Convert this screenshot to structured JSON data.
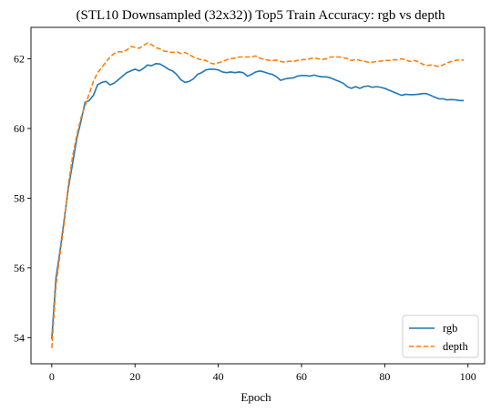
{
  "chart_data": {
    "type": "line",
    "title": "(STL10 Downsampled (32x32)) Top5 Train Accuracy: rgb vs depth",
    "xlabel": "Epoch",
    "ylabel": "",
    "xlim": [
      -5,
      104
    ],
    "ylim": [
      53.25,
      62.9
    ],
    "xticks": [
      0,
      20,
      40,
      60,
      80,
      100
    ],
    "yticks": [
      54,
      56,
      58,
      60,
      62
    ],
    "grid": false,
    "legend_position": "lower-right",
    "series": [
      {
        "name": "rgb",
        "color": "#1f77b4",
        "style": "solid",
        "values": [
          [
            0,
            53.95
          ],
          [
            1,
            55.7
          ],
          [
            2,
            56.5
          ],
          [
            3,
            57.4
          ],
          [
            4,
            58.3
          ],
          [
            5,
            59.0
          ],
          [
            6,
            59.7
          ],
          [
            7,
            60.2
          ],
          [
            8,
            60.75
          ],
          [
            9,
            60.8
          ],
          [
            10,
            60.95
          ],
          [
            11,
            61.25
          ],
          [
            12,
            61.32
          ],
          [
            13,
            61.35
          ],
          [
            14,
            61.25
          ],
          [
            15,
            61.3
          ],
          [
            16,
            61.4
          ],
          [
            17,
            61.5
          ],
          [
            18,
            61.6
          ],
          [
            19,
            61.65
          ],
          [
            20,
            61.7
          ],
          [
            21,
            61.65
          ],
          [
            22,
            61.72
          ],
          [
            23,
            61.82
          ],
          [
            24,
            61.8
          ],
          [
            25,
            61.86
          ],
          [
            26,
            61.85
          ],
          [
            27,
            61.78
          ],
          [
            28,
            61.7
          ],
          [
            29,
            61.65
          ],
          [
            30,
            61.55
          ],
          [
            31,
            61.4
          ],
          [
            32,
            61.32
          ],
          [
            33,
            61.35
          ],
          [
            34,
            61.42
          ],
          [
            35,
            61.55
          ],
          [
            36,
            61.6
          ],
          [
            37,
            61.68
          ],
          [
            38,
            61.7
          ],
          [
            39,
            61.7
          ],
          [
            40,
            61.68
          ],
          [
            41,
            61.62
          ],
          [
            42,
            61.6
          ],
          [
            43,
            61.62
          ],
          [
            44,
            61.6
          ],
          [
            45,
            61.62
          ],
          [
            46,
            61.6
          ],
          [
            47,
            61.5
          ],
          [
            48,
            61.55
          ],
          [
            49,
            61.62
          ],
          [
            50,
            61.65
          ],
          [
            51,
            61.62
          ],
          [
            52,
            61.58
          ],
          [
            53,
            61.55
          ],
          [
            54,
            61.48
          ],
          [
            55,
            61.38
          ],
          [
            56,
            61.42
          ],
          [
            57,
            61.44
          ],
          [
            58,
            61.45
          ],
          [
            59,
            61.5
          ],
          [
            60,
            61.52
          ],
          [
            61,
            61.52
          ],
          [
            62,
            61.5
          ],
          [
            63,
            61.53
          ],
          [
            64,
            61.5
          ],
          [
            65,
            61.48
          ],
          [
            66,
            61.48
          ],
          [
            67,
            61.45
          ],
          [
            68,
            61.4
          ],
          [
            69,
            61.35
          ],
          [
            70,
            61.3
          ],
          [
            71,
            61.2
          ],
          [
            72,
            61.15
          ],
          [
            73,
            61.2
          ],
          [
            74,
            61.15
          ],
          [
            75,
            61.2
          ],
          [
            76,
            61.22
          ],
          [
            77,
            61.18
          ],
          [
            78,
            61.2
          ],
          [
            79,
            61.18
          ],
          [
            80,
            61.15
          ],
          [
            81,
            61.1
          ],
          [
            82,
            61.05
          ],
          [
            83,
            61.0
          ],
          [
            84,
            60.95
          ],
          [
            85,
            60.98
          ],
          [
            86,
            60.97
          ],
          [
            87,
            60.97
          ],
          [
            88,
            60.98
          ],
          [
            89,
            61.0
          ],
          [
            90,
            61.0
          ],
          [
            91,
            60.95
          ],
          [
            92,
            60.9
          ],
          [
            93,
            60.85
          ],
          [
            94,
            60.85
          ],
          [
            95,
            60.82
          ],
          [
            96,
            60.83
          ],
          [
            97,
            60.82
          ],
          [
            98,
            60.8
          ],
          [
            99,
            60.8
          ]
        ]
      },
      {
        "name": "depth",
        "color": "#ff7f0e",
        "style": "dashed",
        "values": [
          [
            0,
            53.7
          ],
          [
            1,
            55.5
          ],
          [
            2,
            56.4
          ],
          [
            3,
            57.3
          ],
          [
            4,
            58.4
          ],
          [
            5,
            59.2
          ],
          [
            6,
            59.8
          ],
          [
            7,
            60.3
          ],
          [
            8,
            60.65
          ],
          [
            9,
            61.0
          ],
          [
            10,
            61.35
          ],
          [
            11,
            61.6
          ],
          [
            12,
            61.75
          ],
          [
            13,
            61.9
          ],
          [
            14,
            62.05
          ],
          [
            15,
            62.15
          ],
          [
            16,
            62.2
          ],
          [
            17,
            62.2
          ],
          [
            18,
            62.25
          ],
          [
            19,
            62.35
          ],
          [
            20,
            62.33
          ],
          [
            21,
            62.3
          ],
          [
            22,
            62.38
          ],
          [
            23,
            62.45
          ],
          [
            24,
            62.4
          ],
          [
            25,
            62.32
          ],
          [
            26,
            62.28
          ],
          [
            27,
            62.22
          ],
          [
            28,
            62.2
          ],
          [
            29,
            62.18
          ],
          [
            30,
            62.2
          ],
          [
            31,
            62.15
          ],
          [
            32,
            62.18
          ],
          [
            33,
            62.12
          ],
          [
            34,
            62.05
          ],
          [
            35,
            62.0
          ],
          [
            36,
            61.97
          ],
          [
            37,
            61.95
          ],
          [
            38,
            61.88
          ],
          [
            39,
            61.85
          ],
          [
            40,
            61.88
          ],
          [
            41,
            61.92
          ],
          [
            42,
            61.97
          ],
          [
            43,
            62.0
          ],
          [
            44,
            62.02
          ],
          [
            45,
            62.05
          ],
          [
            46,
            62.05
          ],
          [
            47,
            62.05
          ],
          [
            48,
            62.05
          ],
          [
            49,
            62.08
          ],
          [
            50,
            62.02
          ],
          [
            51,
            61.98
          ],
          [
            52,
            61.96
          ],
          [
            53,
            61.95
          ],
          [
            54,
            61.96
          ],
          [
            55,
            61.92
          ],
          [
            56,
            61.9
          ],
          [
            57,
            61.93
          ],
          [
            58,
            61.92
          ],
          [
            59,
            61.95
          ],
          [
            60,
            61.97
          ],
          [
            61,
            61.98
          ],
          [
            62,
            62.0
          ],
          [
            63,
            62.02
          ],
          [
            64,
            62.0
          ],
          [
            65,
            61.98
          ],
          [
            66,
            62.0
          ],
          [
            67,
            62.05
          ],
          [
            68,
            62.05
          ],
          [
            69,
            62.05
          ],
          [
            70,
            62.03
          ],
          [
            71,
            62.0
          ],
          [
            72,
            61.95
          ],
          [
            73,
            61.98
          ],
          [
            74,
            61.95
          ],
          [
            75,
            61.93
          ],
          [
            76,
            61.9
          ],
          [
            77,
            61.9
          ],
          [
            78,
            61.92
          ],
          [
            79,
            61.93
          ],
          [
            80,
            61.95
          ],
          [
            81,
            61.95
          ],
          [
            82,
            61.97
          ],
          [
            83,
            61.97
          ],
          [
            84,
            62.0
          ],
          [
            85,
            61.97
          ],
          [
            86,
            61.92
          ],
          [
            87,
            61.95
          ],
          [
            88,
            61.92
          ],
          [
            89,
            61.85
          ],
          [
            90,
            61.8
          ],
          [
            91,
            61.82
          ],
          [
            92,
            61.8
          ],
          [
            93,
            61.78
          ],
          [
            94,
            61.82
          ],
          [
            95,
            61.88
          ],
          [
            96,
            61.92
          ],
          [
            97,
            61.95
          ],
          [
            98,
            61.97
          ],
          [
            99,
            61.96
          ]
        ]
      }
    ]
  }
}
